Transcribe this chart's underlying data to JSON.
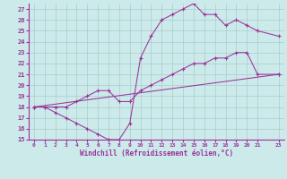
{
  "xlabel": "Windchill (Refroidissement éolien,°C)",
  "background_color": "#cceaea",
  "grid_color": "#aacccc",
  "line_color": "#993399",
  "xlim": [
    -0.5,
    23.5
  ],
  "ylim": [
    15,
    27.5
  ],
  "yticks": [
    15,
    16,
    17,
    18,
    19,
    20,
    21,
    22,
    23,
    24,
    25,
    26,
    27
  ],
  "xticks": [
    0,
    1,
    2,
    3,
    4,
    5,
    6,
    7,
    8,
    9,
    10,
    11,
    12,
    13,
    14,
    15,
    16,
    17,
    18,
    19,
    20,
    21,
    23
  ],
  "curve1_x": [
    0,
    1,
    2,
    3,
    4,
    5,
    6,
    7,
    8,
    9,
    10,
    11,
    12,
    13,
    14,
    15,
    16,
    17,
    18,
    19,
    20,
    21,
    23
  ],
  "curve1_y": [
    18,
    18,
    17.5,
    17,
    16.5,
    16,
    15.5,
    15,
    15,
    16.5,
    22.5,
    24.5,
    26,
    26.5,
    27,
    27.5,
    26.5,
    26.5,
    25.5,
    26,
    25.5,
    25,
    24.5
  ],
  "curve2_x": [
    0,
    1,
    2,
    3,
    4,
    5,
    6,
    7,
    8,
    9,
    10,
    11,
    12,
    13,
    14,
    15,
    16,
    17,
    18,
    19,
    20,
    21,
    23
  ],
  "curve2_y": [
    18,
    18,
    18,
    18,
    18.5,
    19,
    19.5,
    19.5,
    18.5,
    18.5,
    19.5,
    20,
    20.5,
    21,
    21.5,
    22,
    22,
    22.5,
    22.5,
    23,
    23,
    21,
    21
  ],
  "curve3_x": [
    0,
    23
  ],
  "curve3_y": [
    18,
    21
  ]
}
